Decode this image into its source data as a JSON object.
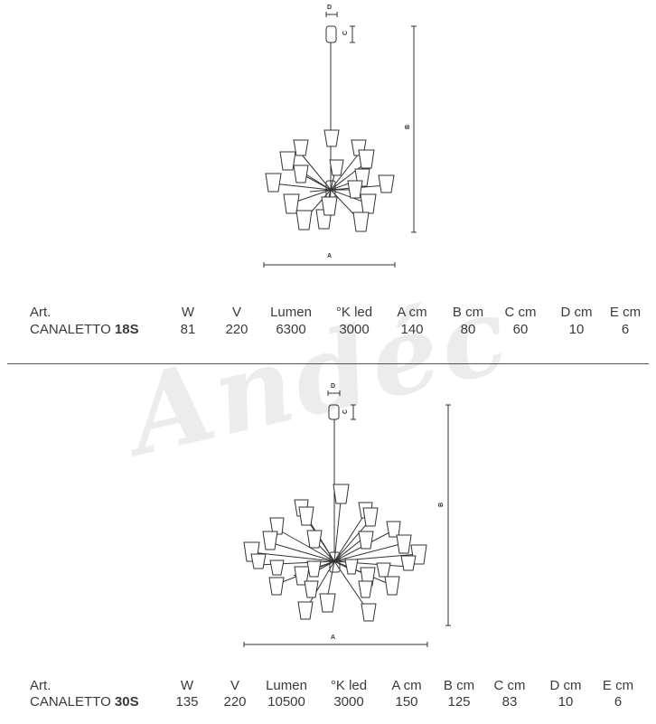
{
  "watermark": "Andéc",
  "products": [
    {
      "dims": {
        "a": "A",
        "b": "B",
        "c": "C",
        "d": "D"
      },
      "headers": {
        "art": "Art.",
        "w": "W",
        "v": "V",
        "lumen": "Lumen",
        "k": "°K led",
        "a": "A cm",
        "b": "B cm",
        "c": "C cm",
        "d": "D cm",
        "e": "E cm"
      },
      "name": "CANALETTO",
      "model": "18S",
      "values": {
        "w": "81",
        "v": "220",
        "lumen": "6300",
        "k": "3000",
        "a": "140",
        "b": "80",
        "c": "60",
        "d": "10",
        "e": "6"
      }
    },
    {
      "dims": {
        "a": "A",
        "b": "B",
        "c": "C",
        "d": "D"
      },
      "headers": {
        "art": "Art.",
        "w": "W",
        "v": "V",
        "lumen": "Lumen",
        "k": "°K led",
        "a": "A cm",
        "b": "B cm",
        "c": "C cm",
        "d": "D cm",
        "e": "E cm"
      },
      "name": "CANALETTO",
      "model": "30S",
      "values": {
        "w": "135",
        "v": "220",
        "lumen": "10500",
        "k": "3000",
        "a": "150",
        "b": "125",
        "c": "83",
        "d": "10",
        "e": "6"
      }
    }
  ]
}
